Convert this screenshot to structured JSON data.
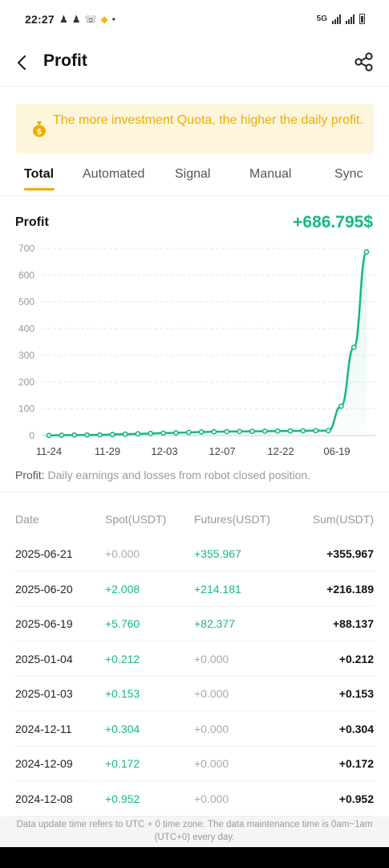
{
  "status_bar": {
    "time": "22:27",
    "network": "5G"
  },
  "header": {
    "title": "Profit"
  },
  "banner": {
    "text": "The more investment Quota, the higher the daily profit."
  },
  "tabs": [
    {
      "label": "Total",
      "active": true
    },
    {
      "label": "Automated",
      "active": false
    },
    {
      "label": "Signal",
      "active": false
    },
    {
      "label": "Manual",
      "active": false
    },
    {
      "label": "Sync",
      "active": false
    }
  ],
  "profit": {
    "label": "Profit",
    "total": "+686.795$"
  },
  "chart_data": {
    "type": "area",
    "title": "",
    "xlabel": "",
    "ylabel": "",
    "ylim": [
      0,
      700
    ],
    "yticks": [
      "0",
      "100",
      "200",
      "300",
      "400",
      "500",
      "600",
      "700"
    ],
    "xticks": [
      "11-24",
      "11-29",
      "12-03",
      "12-07",
      "12-22",
      "06-19"
    ],
    "grid": true,
    "color": "#16b97f",
    "series": [
      {
        "values": [
          0.5,
          1.5,
          2.0,
          2.5,
          3.0,
          4.0,
          5.5,
          6.5,
          8.0,
          9.5,
          10.5,
          12.0,
          13.5,
          14.5,
          15.0,
          15.5,
          16.0,
          16.5,
          17.0,
          17.5,
          18.0,
          18.5,
          18.5,
          110.0,
          330.0,
          686.8
        ]
      }
    ]
  },
  "chart_note": {
    "label": "Profit:",
    "text": " Daily earnings and losses from robot closed position."
  },
  "table": {
    "headers": [
      "Date",
      "Spot(USDT)",
      "Futures(USDT)",
      "Sum(USDT)"
    ],
    "rows": [
      {
        "date": "2025-06-21",
        "spot": "+0.000",
        "futures": "+355.967",
        "sum": "+355.967"
      },
      {
        "date": "2025-06-20",
        "spot": "+2.008",
        "futures": "+214.181",
        "sum": "+216.189"
      },
      {
        "date": "2025-06-19",
        "spot": "+5.760",
        "futures": "+82.377",
        "sum": "+88.137"
      },
      {
        "date": "2025-01-04",
        "spot": "+0.212",
        "futures": "+0.000",
        "sum": "+0.212"
      },
      {
        "date": "2025-01-03",
        "spot": "+0.153",
        "futures": "+0.000",
        "sum": "+0.153"
      },
      {
        "date": "2024-12-11",
        "spot": "+0.304",
        "futures": "+0.000",
        "sum": "+0.304"
      },
      {
        "date": "2024-12-09",
        "spot": "+0.172",
        "futures": "+0.000",
        "sum": "+0.172"
      },
      {
        "date": "2024-12-08",
        "spot": "+0.952",
        "futures": "+0.000",
        "sum": "+0.952"
      }
    ]
  },
  "footer": {
    "text": "Data update time refers to UTC + 0 time zone. The data maintenance time is 0am~1am (UTC+0) every day."
  }
}
